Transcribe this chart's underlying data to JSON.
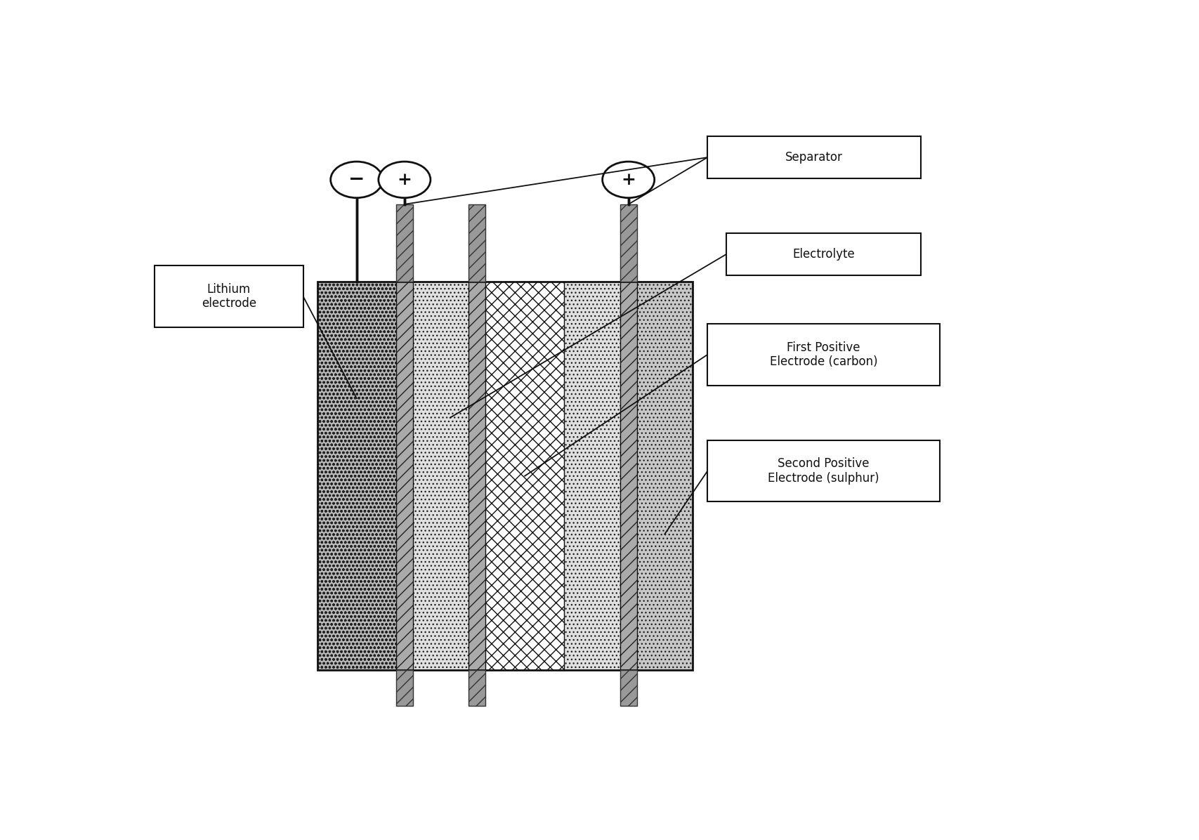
{
  "fig_width": 17.07,
  "fig_height": 11.96,
  "bg_color": "#ffffff",
  "labels": {
    "separator": "Separator",
    "electrolyte": "Electrolyte",
    "first_positive": "First Positive\nElectrode (carbon)",
    "second_positive": "Second Positive\nElectrode (sulphur)",
    "lithium": "Lithium\nelectrode"
  },
  "minus_symbol": "−",
  "plus_symbol": "+"
}
